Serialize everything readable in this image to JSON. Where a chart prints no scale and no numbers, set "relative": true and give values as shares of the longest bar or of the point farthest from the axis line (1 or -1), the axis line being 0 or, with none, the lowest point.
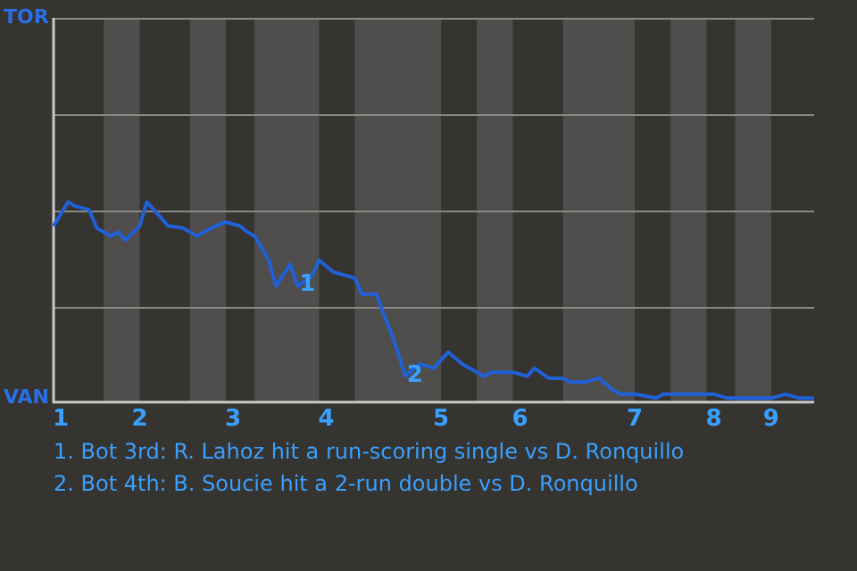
{
  "chart_data": {
    "type": "line",
    "relative": true,
    "categories": [
      null,
      "1",
      null,
      null,
      null,
      null,
      null,
      null,
      null,
      null,
      null,
      null,
      "2",
      null,
      null,
      null,
      null,
      null,
      null,
      null,
      null,
      null,
      null,
      null,
      null,
      "3",
      null,
      null,
      null,
      null,
      null,
      null,
      null,
      null,
      null,
      null,
      null,
      null,
      "4",
      null,
      null,
      null,
      null,
      null,
      null,
      null,
      null,
      null,
      null,
      null,
      null,
      null,
      null,
      null,
      "5",
      null,
      null,
      null,
      null,
      null,
      null,
      null,
      null,
      null,
      null,
      "6",
      null,
      null,
      null,
      null,
      null,
      null,
      null,
      null,
      null,
      null,
      null,
      null,
      null,
      null,
      null,
      "7",
      null,
      null,
      null,
      null,
      null,
      null,
      null,
      null,
      null,
      null,
      "8",
      null,
      null,
      null,
      null,
      null,
      null,
      null,
      "9",
      null,
      null,
      null,
      null,
      null,
      null
    ],
    "legend": false,
    "marker": "none",
    "line_style": "solid",
    "series": [
      {
        "color": "#2060d8",
        "values": [
          0.88,
          null,
          1,
          0.98,
          null,
          0.96,
          0.87,
          null,
          0.83,
          0.85,
          0.81,
          null,
          0.88,
          1,
          null,
          0.92,
          0.88,
          null,
          0.87,
          null,
          0.83,
          null,
          0.87,
          null,
          0.9,
          null,
          0.88,
          0.85,
          0.83,
          null,
          0.71,
          0.58,
          null,
          0.69,
          0.58,
          null,
          0.63,
          0.71,
          null,
          0.65,
          null,
          0.63,
          0.62,
          0.54,
          null,
          0.54,
          0.44,
          0.35,
          0.25,
          0.13,
          null,
          0.19,
          null,
          0.17,
          null,
          0.25,
          null,
          0.19,
          null,
          null,
          0.13,
          0.15,
          null,
          null,
          0.15,
          null,
          0.13,
          0.17,
          null,
          0.12,
          null,
          0.12,
          0.1,
          null,
          0.1,
          null,
          0.12,
          null,
          0.06,
          0.04,
          null,
          0.04,
          null,
          null,
          0.02,
          0.04,
          null,
          null,
          0.04,
          null,
          null,
          null,
          0.04,
          null,
          0.02,
          null,
          null,
          null,
          null,
          null,
          0.02,
          null,
          0.04,
          null,
          0.02,
          null,
          0.02
        ]
      }
    ],
    "ref_lines": [
      {
        "axis": "y",
        "value": 0.48,
        "color": "#8a8986"
      },
      {
        "axis": "y",
        "value": 0.96,
        "color": "#8a8986"
      },
      {
        "axis": "y",
        "value": 1.44,
        "color": "#8a8986"
      },
      {
        "axis": "y",
        "value": 1.92,
        "color": "#8a8986"
      }
    ],
    "annotations": [
      "TOR",
      "VAN",
      {
        "text": "1",
        "y": 0.58
      },
      {
        "text": "2",
        "y": 0.13
      },
      "1. Bot 3rd: R. Lahoz hit a run-scoring single vs D. Ronquillo",
      "2. Bot 4th: B. Soucie hit a 2-run double vs D. Ronquillo"
    ]
  }
}
